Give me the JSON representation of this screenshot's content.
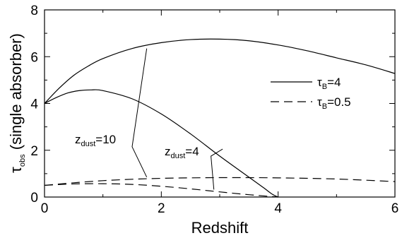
{
  "chart_data": {
    "type": "line",
    "xlabel": "Redshift",
    "ylabel": {
      "main": "τ",
      "sub": "obs",
      "rest": " (single absorber)"
    },
    "xlim": [
      0,
      6
    ],
    "ylim": [
      0,
      8
    ],
    "x_ticks": [
      "0",
      "2",
      "4",
      "6"
    ],
    "y_ticks": [
      "0",
      "2",
      "4",
      "6",
      "8"
    ],
    "grid": false,
    "legend_position": "right",
    "legend": [
      {
        "main": "τ",
        "sub": "B",
        "rest": "=4",
        "style": "solid"
      },
      {
        "main": "τ",
        "sub": "B",
        "rest": "=0.5",
        "style": "dashed"
      }
    ],
    "annotations": [
      {
        "main": "z",
        "sub": "dust",
        "rest": "=10"
      },
      {
        "main": "z",
        "sub": "dust",
        "rest": "=4"
      }
    ],
    "series": [
      {
        "style": "solid",
        "annotation": "zdust=10",
        "x": [
          0,
          0.25,
          0.5,
          0.75,
          1.0,
          1.5,
          2.0,
          2.5,
          3.0,
          3.5,
          4.0,
          4.5,
          5.0,
          5.5,
          6.0
        ],
        "y": [
          4.0,
          4.65,
          5.2,
          5.6,
          5.92,
          6.35,
          6.6,
          6.73,
          6.75,
          6.68,
          6.5,
          6.25,
          5.95,
          5.65,
          5.28
        ]
      },
      {
        "style": "solid",
        "annotation": "zdust=4",
        "x": [
          0,
          0.2,
          0.4,
          0.6,
          0.8,
          1.0,
          1.5,
          2.0,
          2.5,
          3.0,
          3.5,
          3.75,
          3.9,
          4.0
        ],
        "y": [
          4.0,
          4.25,
          4.45,
          4.55,
          4.58,
          4.55,
          4.2,
          3.55,
          2.7,
          1.75,
          0.85,
          0.4,
          0.12,
          0.0
        ]
      },
      {
        "style": "dashed",
        "annotation": "zdust=10",
        "x": [
          0,
          0.5,
          1.0,
          1.5,
          2.0,
          2.5,
          3.0,
          3.5,
          4.0,
          4.5,
          5.0,
          5.5,
          6.0
        ],
        "y": [
          0.5,
          0.61,
          0.7,
          0.76,
          0.8,
          0.82,
          0.83,
          0.83,
          0.82,
          0.8,
          0.77,
          0.72,
          0.66
        ]
      },
      {
        "style": "dashed",
        "annotation": "zdust=4",
        "x": [
          0,
          0.5,
          1.0,
          1.5,
          2.0,
          2.5,
          3.0,
          3.5,
          4.0
        ],
        "y": [
          0.5,
          0.56,
          0.57,
          0.54,
          0.46,
          0.35,
          0.22,
          0.1,
          0.0
        ]
      }
    ]
  }
}
